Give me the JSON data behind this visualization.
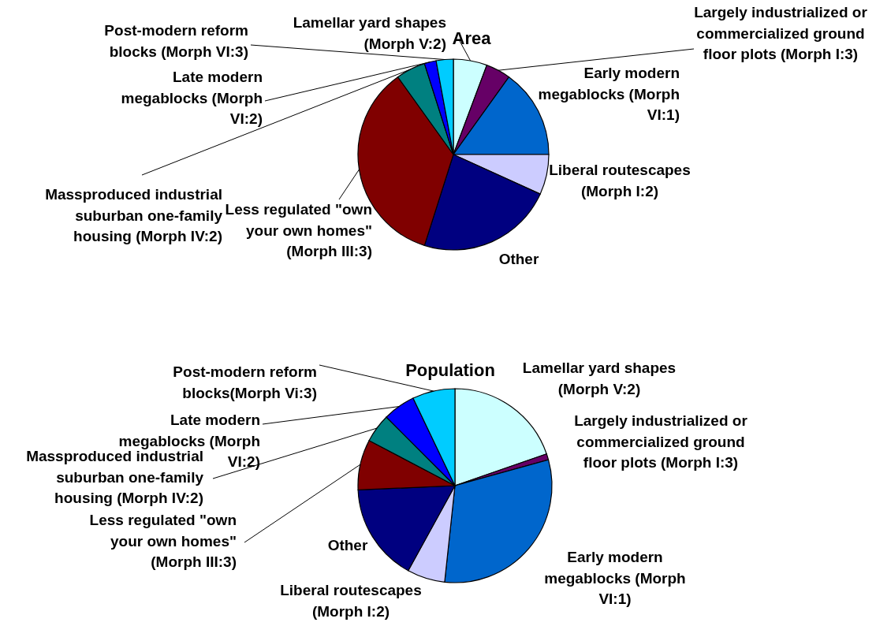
{
  "chart_data": [
    {
      "type": "pie",
      "title": "Area",
      "categories": [
        "Lamellar yard shapes (Morph V:2)",
        "Largely industrialized or commercialized ground floor plots (Morph I:3)",
        "Early modern megablocks (Morph VI:1)",
        "Liberal routescapes (Morph I:2)",
        "Other",
        "Less regulated \"own your own homes\" (Morph III:3)",
        "Massproduced industrial suburban one-family housing (Morph IV:2)",
        "Late modern megablocks (Morph VI:2)",
        "Post-modern reform blocks (Morph VI:3)"
      ],
      "values": [
        5.7,
        4.2,
        15.1,
        6.8,
        23.1,
        35.2,
        5.0,
        2.0,
        2.9
      ],
      "colors": [
        "#ccffff",
        "#660066",
        "#0066cc",
        "#ccccff",
        "#000080",
        "#800000",
        "#008080",
        "#0000ff",
        "#00ccff"
      ]
    },
    {
      "type": "pie",
      "title": "Population",
      "categories": [
        "Lamellar yard shapes (Morph V:2)",
        "Largely industrialized or commercialized ground floor plots (Morph I:3)",
        "Early modern megablocks (Morph VI:1)",
        "Liberal routescapes (Morph I:2)",
        "Other",
        "Less regulated \"own your own homes\" (Morph III:3)",
        "Massproduced industrial suburban one-family housing (Morph IV:2)",
        "Late modern megablocks (Morph VI:2)",
        "Post-modern reform blocks(Morph Vi:3)"
      ],
      "values": [
        19.7,
        1.0,
        31.0,
        6.3,
        16.3,
        8.4,
        4.8,
        5.4,
        7.1
      ],
      "colors": [
        "#ccffff",
        "#660066",
        "#0066cc",
        "#ccccff",
        "#000080",
        "#800000",
        "#008080",
        "#0000ff",
        "#00ccff"
      ]
    }
  ]
}
